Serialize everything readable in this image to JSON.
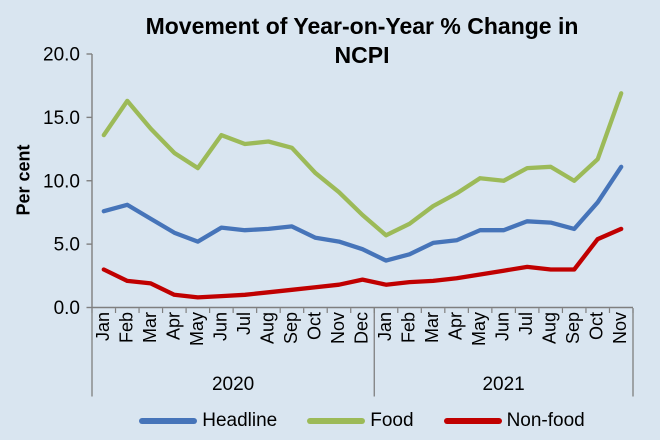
{
  "title_lines": [
    "Movement of Year-on-Year % Change in",
    "NCPI"
  ],
  "chart_data": {
    "type": "line",
    "title": "Movement of Year-on-Year % Change in NCPI",
    "ylabel": "Per cent",
    "ylim": [
      0,
      20
    ],
    "grid": false,
    "legend_position": "bottom",
    "yticks": [
      {
        "value": 20,
        "label": "20.0"
      },
      {
        "value": 15,
        "label": "15.0"
      },
      {
        "value": 10,
        "label": "10.0"
      },
      {
        "value": 5,
        "label": "5.0"
      },
      {
        "value": 0,
        "label": "0.0"
      }
    ],
    "categories": [
      "Jan",
      "Feb",
      "Mar",
      "Apr",
      "May",
      "Jun",
      "Jul",
      "Aug",
      "Sep",
      "Oct",
      "Nov",
      "Dec",
      "Jan",
      "Feb",
      "Mar",
      "Apr",
      "May",
      "Jun",
      "Jul",
      "Aug",
      "Sep",
      "Oct",
      "Nov"
    ],
    "year_groups": [
      {
        "label": "2020",
        "months": 12
      },
      {
        "label": "2021",
        "months": 11
      }
    ],
    "series": [
      {
        "name": "Headline",
        "color": "#4674b9",
        "values": [
          7.6,
          8.1,
          7.0,
          5.9,
          5.2,
          6.3,
          6.1,
          6.2,
          6.4,
          5.5,
          5.2,
          4.6,
          3.7,
          4.2,
          5.1,
          5.3,
          6.1,
          6.1,
          6.8,
          6.7,
          6.2,
          8.3,
          11.1
        ]
      },
      {
        "name": "Food",
        "color": "#9cba58",
        "values": [
          13.6,
          16.3,
          14.1,
          12.2,
          11.0,
          13.6,
          12.9,
          13.1,
          12.6,
          10.6,
          9.1,
          7.3,
          5.7,
          6.6,
          8.0,
          9.0,
          10.2,
          10.0,
          11.0,
          11.1,
          10.0,
          11.7,
          16.9
        ]
      },
      {
        "name": "Non-food",
        "color": "#c00000",
        "values": [
          3.0,
          2.1,
          1.9,
          1.0,
          0.8,
          0.9,
          1.0,
          1.2,
          1.4,
          1.6,
          1.8,
          2.2,
          1.8,
          2.0,
          2.1,
          2.3,
          2.6,
          2.9,
          3.2,
          3.0,
          3.0,
          5.4,
          6.2
        ]
      }
    ],
    "colors": {
      "background": "#d9e5f0",
      "axis": "#7f7f7f",
      "text": "#000000"
    }
  }
}
